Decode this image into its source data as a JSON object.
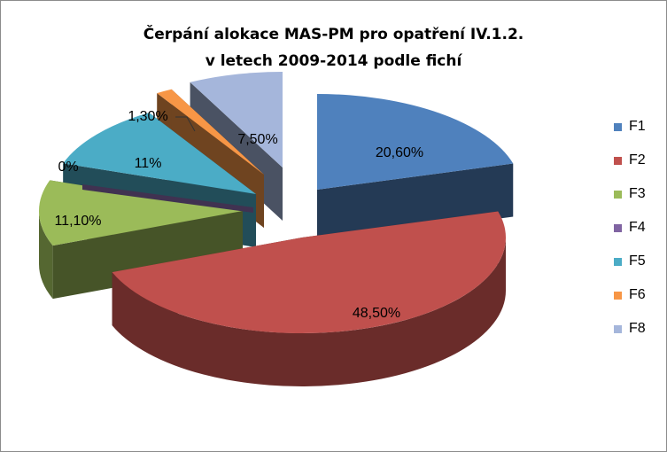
{
  "chart_data": {
    "type": "pie",
    "title_line1": "Čerpání alokace MAS-PM pro opatření IV.1.2.",
    "title_line2": "v letech 2009-2014 podle fichí",
    "legend_position": "right",
    "slices": [
      {
        "label": "F1",
        "value": 20.6,
        "value_label": "20,60%",
        "color": "#4F81BD"
      },
      {
        "label": "F2",
        "value": 48.5,
        "value_label": "48,50%",
        "color": "#C0504D"
      },
      {
        "label": "F3",
        "value": 11.1,
        "value_label": "11,10%",
        "color": "#9BBB59"
      },
      {
        "label": "F4",
        "value": 0,
        "value_label": "0%",
        "color": "#8064A2"
      },
      {
        "label": "F5",
        "value": 11,
        "value_label": "11%",
        "color": "#4BACC6"
      },
      {
        "label": "F6",
        "value": 1.3,
        "value_label": "1,30%",
        "color": "#F79646"
      },
      {
        "label": "F8",
        "value": 7.5,
        "value_label": "7,50%",
        "color": "#A5B6DB"
      }
    ]
  }
}
